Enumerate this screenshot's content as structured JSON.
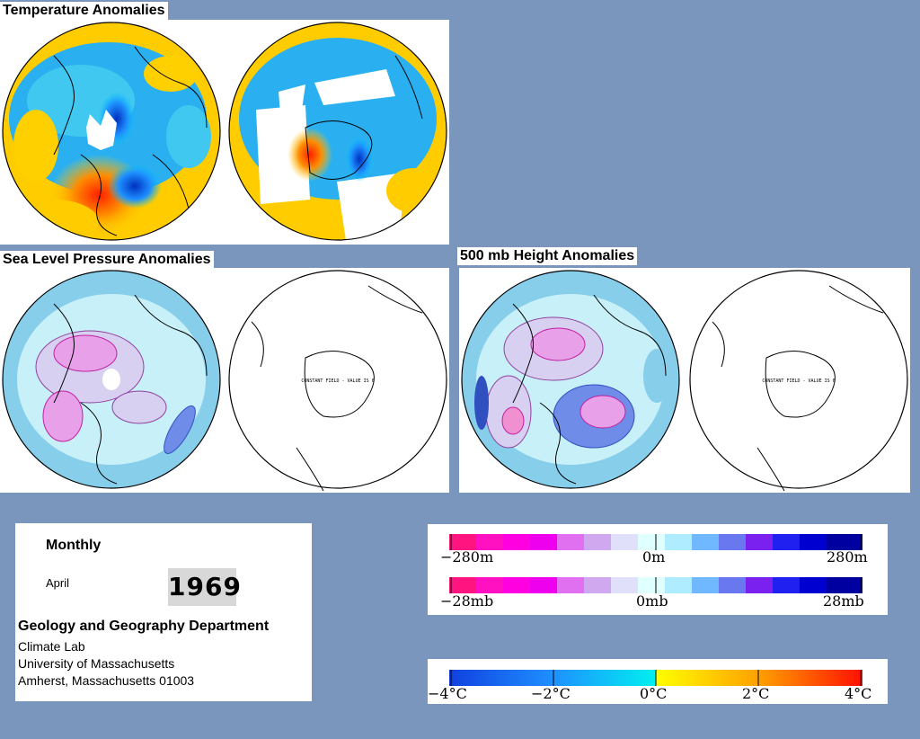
{
  "titles": {
    "temperature": "Temperature Anomalies",
    "pressure": "Sea Level Pressure Anomalies",
    "height": "500 mb Height Anomalies"
  },
  "map_notes": {
    "constant_field": "CONSTANT FIELD - VALUE IS 0"
  },
  "info": {
    "period": "Monthly",
    "month": "April",
    "year": "1969",
    "department": "Geology and Geography Department",
    "lab": "Climate Lab",
    "university": "University of Massachusetts",
    "address": "Amherst, Massachusetts 01003"
  },
  "legends": {
    "height": {
      "min": "−280m",
      "mid": "0m",
      "max": "280m"
    },
    "pressure": {
      "min": "−28mb",
      "mid": "0mb",
      "max": "28mb"
    },
    "temperature": {
      "t1": "−4°C",
      "t2": "−2°C",
      "t3": "0°C",
      "t4": "2°C",
      "t5": "4°C"
    }
  },
  "colors": {
    "background": "#7b96bd",
    "negative_strong": "#ff1493",
    "negative_mid": "#ee82ee",
    "neutral": "#e0ffff",
    "positive_mid": "#6495ed",
    "positive_strong": "#0000cd",
    "temp_cold": "#1e90ff",
    "temp_cool": "#00bfff",
    "temp_zero": "#ffff00",
    "temp_warm": "#ff8c00",
    "temp_hot": "#ff2000"
  }
}
